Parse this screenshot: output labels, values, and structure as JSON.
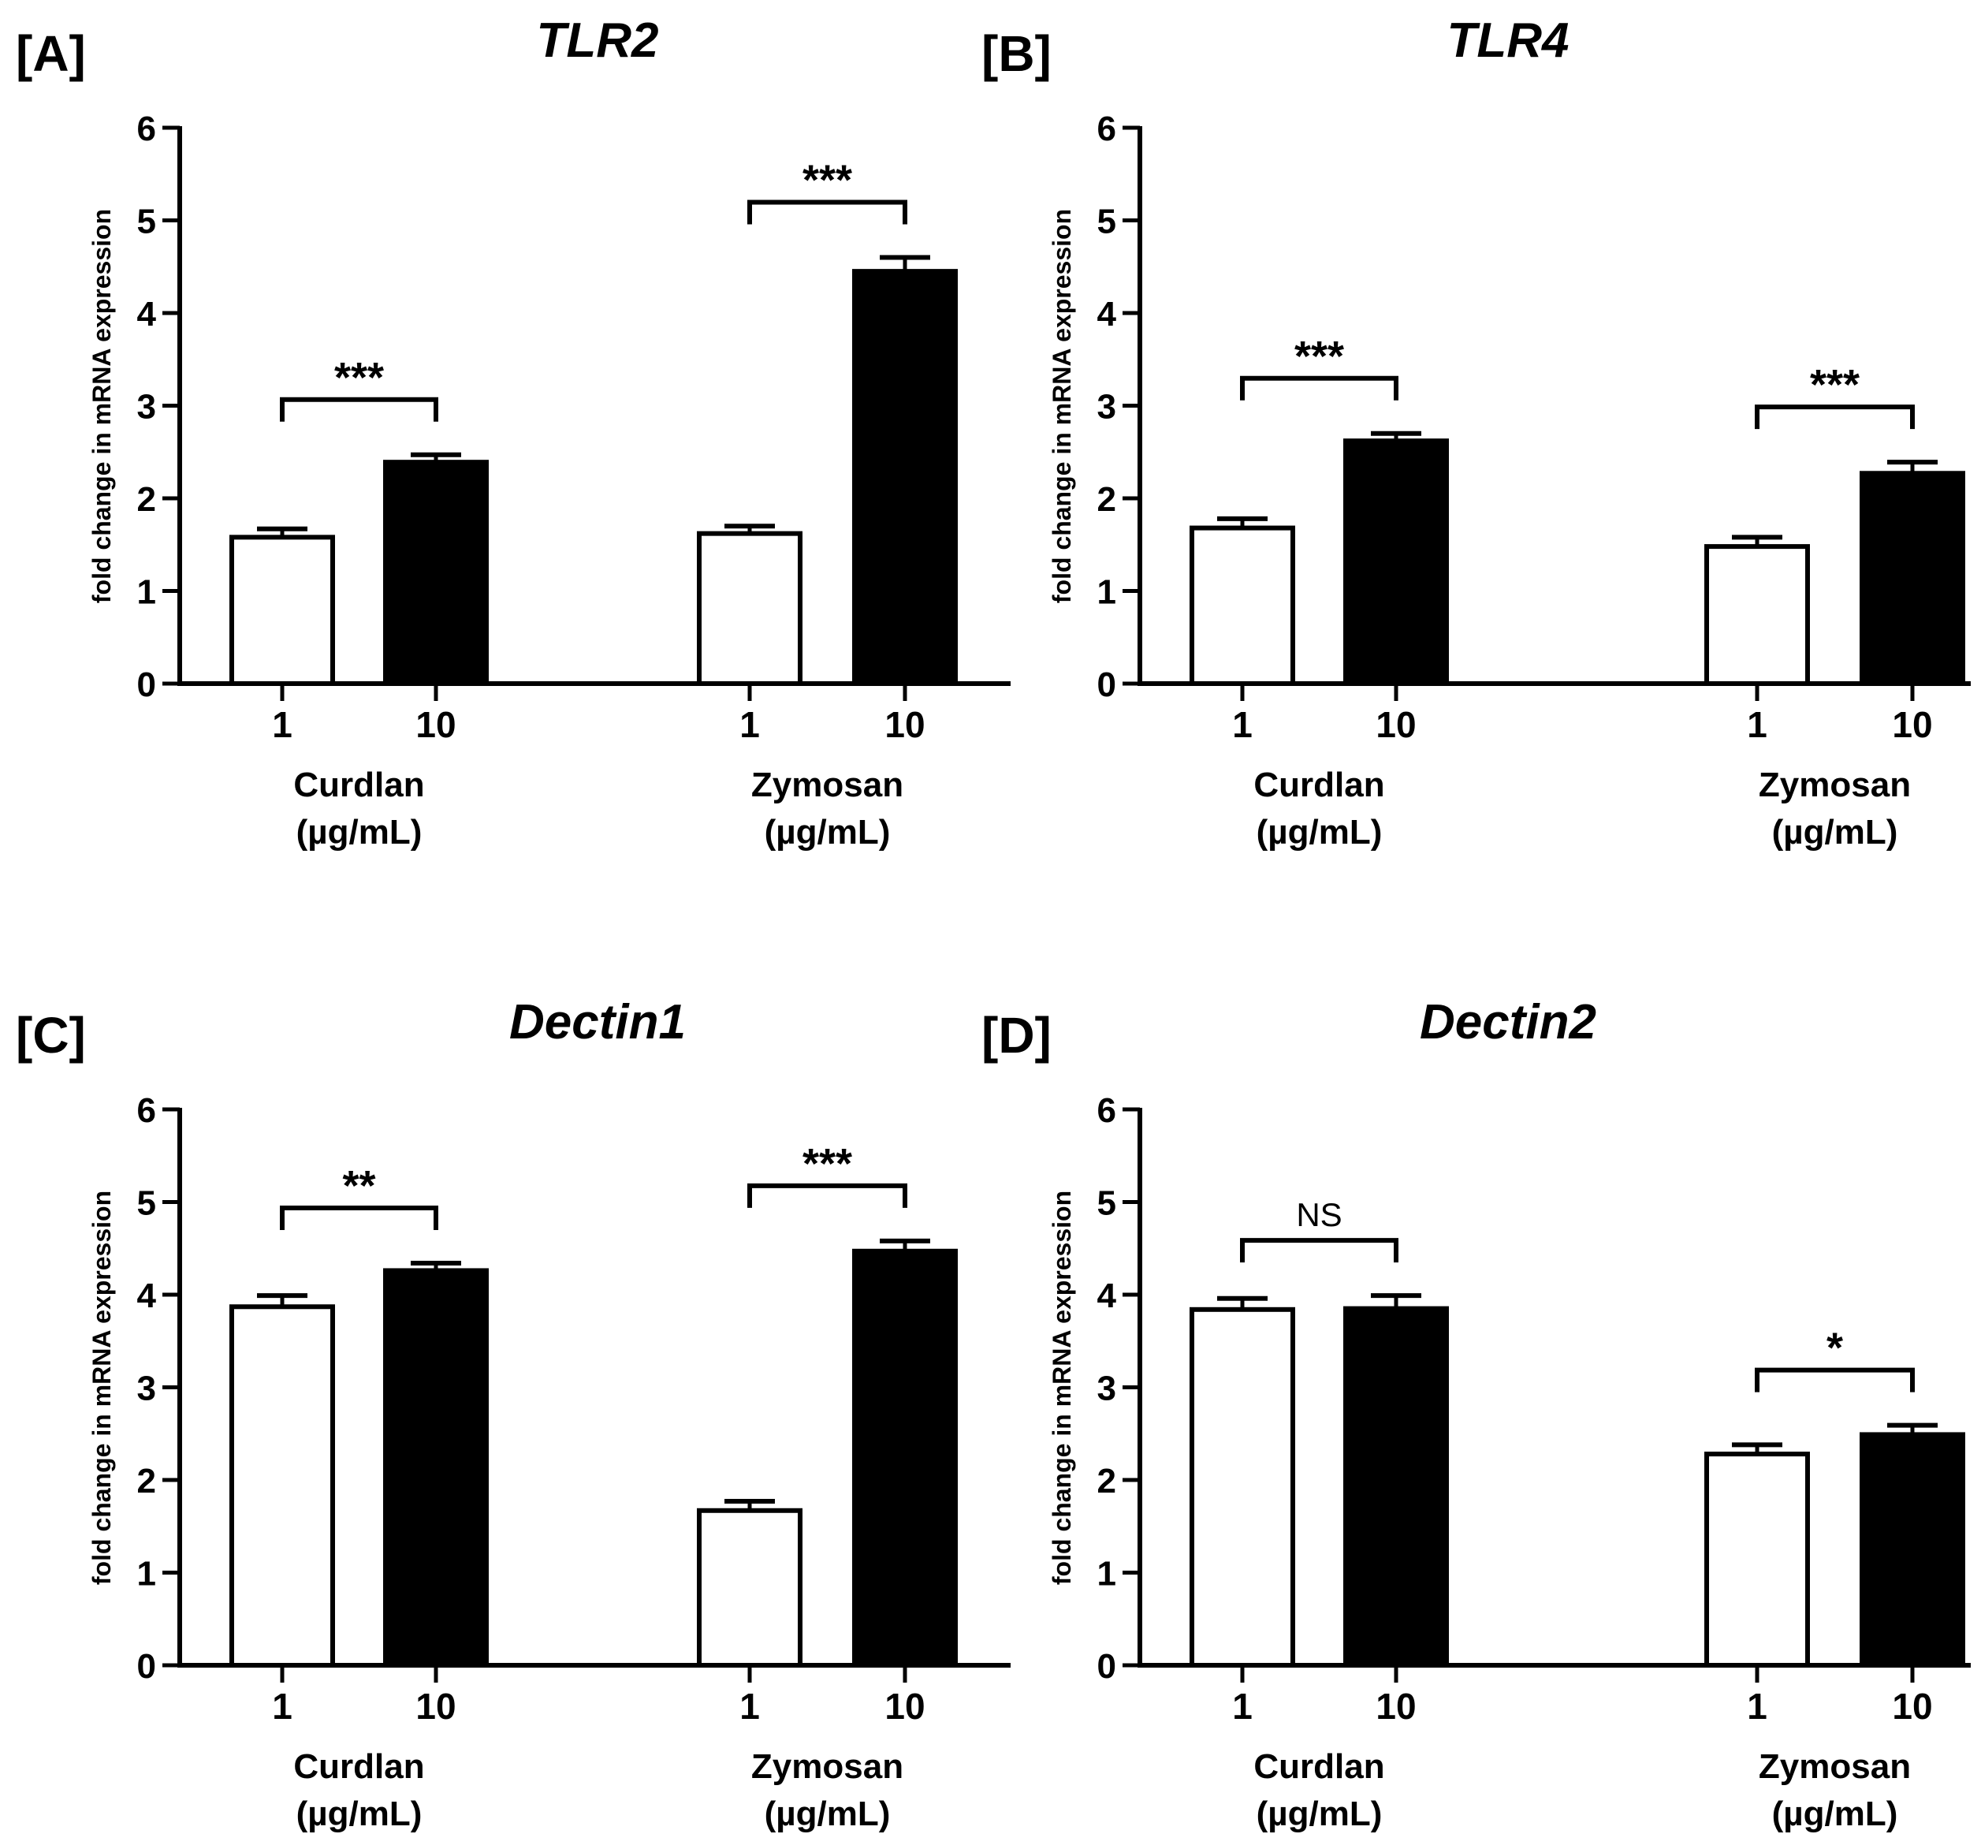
{
  "chart_data": [
    {
      "type": "bar",
      "panel_label": "[A]",
      "title": "TLR2",
      "ylabel": "fold change in mRNA expression",
      "ylim": [
        0,
        6
      ],
      "yticks": [
        "0",
        "1",
        "2",
        "3",
        "4",
        "5",
        "6"
      ],
      "groups": [
        {
          "name": "Curdlan",
          "unit": "(µg/mL)",
          "doses": [
            "1",
            "10"
          ],
          "values": [
            1.58,
            2.39
          ],
          "errors": [
            0.09,
            0.08
          ],
          "significance": "***"
        },
        {
          "name": "Zymosan",
          "unit": "(µg/mL)",
          "doses": [
            "1",
            "10"
          ],
          "values": [
            1.62,
            4.45
          ],
          "errors": [
            0.08,
            0.15
          ],
          "significance": "***"
        }
      ],
      "bar_colors": [
        "#ffffff",
        "#000000"
      ]
    },
    {
      "type": "bar",
      "panel_label": "[B]",
      "title": "TLR4",
      "ylabel": "fold change in mRNA expression",
      "ylim": [
        0,
        6
      ],
      "yticks": [
        "0",
        "1",
        "2",
        "3",
        "4",
        "5",
        "6"
      ],
      "groups": [
        {
          "name": "Curdlan",
          "unit": "(µg/mL)",
          "doses": [
            "1",
            "10"
          ],
          "values": [
            1.68,
            2.62
          ],
          "errors": [
            0.1,
            0.08
          ],
          "significance": "***"
        },
        {
          "name": "Zymosan",
          "unit": "(µg/mL)",
          "doses": [
            "1",
            "10"
          ],
          "values": [
            1.48,
            2.27
          ],
          "errors": [
            0.1,
            0.12
          ],
          "significance": "***"
        }
      ],
      "bar_colors": [
        "#ffffff",
        "#000000"
      ]
    },
    {
      "type": "bar",
      "panel_label": "[C]",
      "title": "Dectin1",
      "ylabel": "fold change in mRNA expression",
      "ylim": [
        0,
        6
      ],
      "yticks": [
        "0",
        "1",
        "2",
        "3",
        "4",
        "5",
        "6"
      ],
      "groups": [
        {
          "name": "Curdlan",
          "unit": "(µg/mL)",
          "doses": [
            "1",
            "10"
          ],
          "values": [
            3.87,
            4.26
          ],
          "errors": [
            0.12,
            0.08
          ],
          "significance": "**"
        },
        {
          "name": "Zymosan",
          "unit": "(µg/mL)",
          "doses": [
            "1",
            "10"
          ],
          "values": [
            1.67,
            4.47
          ],
          "errors": [
            0.1,
            0.11
          ],
          "significance": "***"
        }
      ],
      "bar_colors": [
        "#ffffff",
        "#000000"
      ]
    },
    {
      "type": "bar",
      "panel_label": "[D]",
      "title": "Dectin2",
      "ylabel": "fold change in mRNA expression",
      "ylim": [
        0,
        6
      ],
      "yticks": [
        "0",
        "1",
        "2",
        "3",
        "4",
        "5",
        "6"
      ],
      "groups": [
        {
          "name": "Curdlan",
          "unit": "(µg/mL)",
          "doses": [
            "1",
            "10"
          ],
          "values": [
            3.84,
            3.85
          ],
          "errors": [
            0.12,
            0.14
          ],
          "significance": "NS"
        },
        {
          "name": "Zymosan",
          "unit": "(µg/mL)",
          "doses": [
            "1",
            "10"
          ],
          "values": [
            2.28,
            2.49
          ],
          "errors": [
            0.1,
            0.1
          ],
          "significance": "*"
        }
      ],
      "bar_colors": [
        "#ffffff",
        "#000000"
      ]
    }
  ]
}
